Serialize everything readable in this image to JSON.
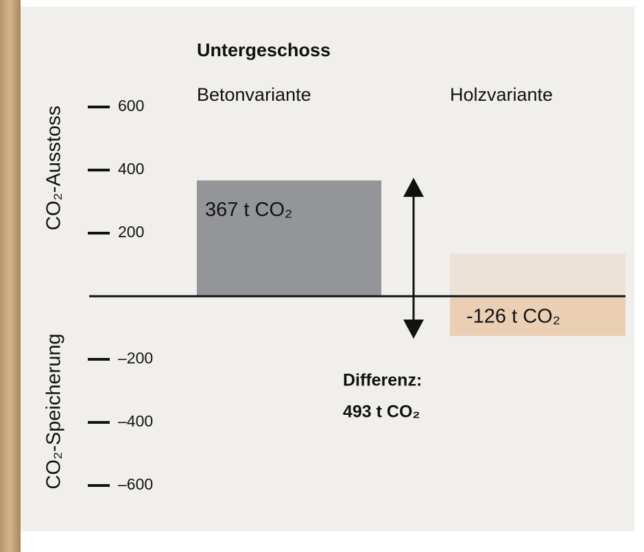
{
  "chart_data": {
    "type": "bar",
    "title": "Untergeschoss",
    "categories": [
      "Betonvariante",
      "Holzvariante"
    ],
    "values": [
      367,
      -126
    ],
    "value_labels": [
      "367 t CO₂",
      "-126 t CO₂"
    ],
    "colors": [
      "#939598",
      "#ebcfb5"
    ],
    "y_axis_labels": [
      "CO₂-Ausstoss",
      "CO₂-Speicherung"
    ],
    "ylim": [
      -700,
      700
    ],
    "yticks": [
      600,
      400,
      200,
      {
        "value": -200,
        "label": "–200"
      },
      {
        "value": -400,
        "label": "–400"
      },
      {
        "value": -600,
        "label": "–600"
      }
    ],
    "annotation": {
      "label": "Differenz:",
      "value": 493,
      "value_label": "493 t CO₂"
    }
  }
}
